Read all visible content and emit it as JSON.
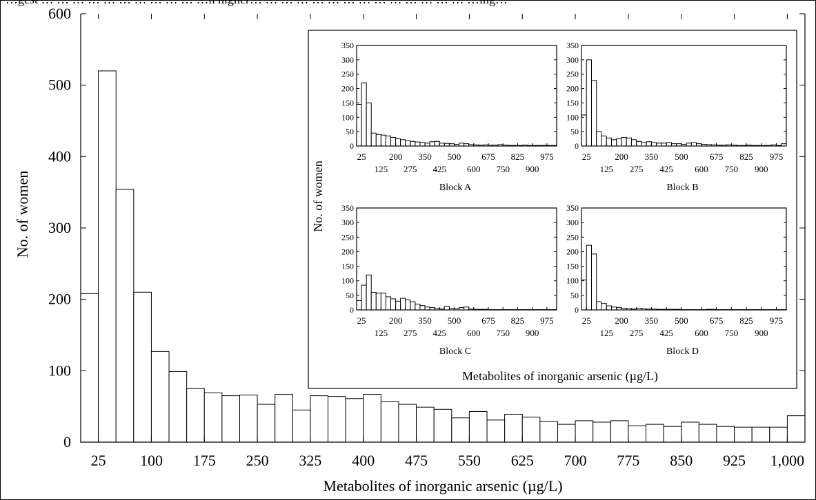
{
  "header_text": "…gest … … … … … … … … … … …n higher… … … … … … … … … … … … … … …ing…",
  "chart_data": [
    {
      "id": "main",
      "type": "bar",
      "xlabel": "Metabolites of inorganic arsenic (µg/L)",
      "ylabel": "No. of women",
      "yticks": [
        "0",
        "100",
        "200",
        "300",
        "400",
        "500",
        "600"
      ],
      "ytick_values": [
        0,
        100,
        200,
        300,
        400,
        500,
        600
      ],
      "xtick_labels": [
        "25",
        "100",
        "175",
        "250",
        "325",
        "400",
        "475",
        "550",
        "625",
        "700",
        "775",
        "850",
        "925",
        "1,000"
      ],
      "xtick_values": [
        25,
        100,
        175,
        250,
        325,
        400,
        475,
        550,
        625,
        700,
        775,
        850,
        925,
        1000
      ],
      "x_range": [
        0,
        1025
      ],
      "y_range": [
        0,
        600
      ],
      "bin_width": 25,
      "bin_starts": [
        0,
        25,
        50,
        75,
        100,
        125,
        150,
        175,
        200,
        225,
        250,
        275,
        300,
        325,
        350,
        375,
        400,
        425,
        450,
        475,
        500,
        525,
        550,
        575,
        600,
        625,
        650,
        675,
        700,
        725,
        750,
        775,
        800,
        825,
        850,
        875,
        900,
        925,
        950,
        975,
        1000
      ],
      "values": [
        208,
        520,
        354,
        210,
        127,
        99,
        75,
        69,
        65,
        66,
        53,
        67,
        45,
        65,
        64,
        61,
        67,
        57,
        53,
        49,
        46,
        34,
        43,
        31,
        39,
        35,
        29,
        25,
        30,
        28,
        30,
        23,
        25,
        22,
        28,
        25,
        22,
        21,
        21,
        21,
        37
      ]
    }
  ],
  "inset": {
    "xlabel": "Metabolites of inorganic arsenic (µg/L)",
    "ylabel": "No. of women",
    "yticks": [
      "0",
      "50",
      "100",
      "150",
      "200",
      "250",
      "300",
      "350"
    ],
    "ytick_values": [
      0,
      50,
      100,
      150,
      200,
      250,
      300,
      350
    ],
    "xtick_top": [
      "25",
      "200",
      "350",
      "500",
      "675",
      "825",
      "975"
    ],
    "xtick_top_values": [
      25,
      200,
      350,
      500,
      675,
      825,
      975
    ],
    "xtick_bottom": [
      "125",
      "275",
      "425",
      "600",
      "750",
      "900"
    ],
    "xtick_bottom_values": [
      125,
      275,
      425,
      600,
      750,
      900
    ],
    "x_range": [
      0,
      1025
    ],
    "y_range": [
      0,
      350
    ],
    "bin_width": 25,
    "panels": [
      {
        "name": "Block A",
        "values": [
          145,
          220,
          150,
          45,
          40,
          38,
          35,
          30,
          25,
          22,
          18,
          16,
          14,
          12,
          10,
          15,
          16,
          10,
          9,
          8,
          6,
          10,
          8,
          5,
          4,
          3,
          4,
          3,
          3,
          5,
          3,
          2,
          2,
          2,
          3,
          2,
          2,
          2,
          2,
          2,
          2
        ]
      },
      {
        "name": "Block B",
        "values": [
          108,
          300,
          228,
          50,
          35,
          28,
          22,
          25,
          30,
          28,
          22,
          16,
          12,
          15,
          12,
          10,
          10,
          12,
          8,
          8,
          6,
          10,
          12,
          8,
          6,
          5,
          4,
          3,
          3,
          4,
          3,
          2,
          2,
          3,
          2,
          2,
          2,
          2,
          4,
          2,
          8
        ]
      },
      {
        "name": "Block C",
        "values": [
          32,
          85,
          120,
          60,
          58,
          58,
          45,
          38,
          30,
          40,
          35,
          28,
          20,
          15,
          10,
          8,
          6,
          3,
          12,
          5,
          4,
          8,
          10,
          3,
          2,
          2,
          2,
          1,
          1,
          1,
          1,
          1,
          1,
          1,
          1,
          1,
          1,
          1,
          1,
          1,
          1
        ]
      },
      {
        "name": "Block D",
        "values": [
          103,
          222,
          192,
          28,
          22,
          14,
          10,
          8,
          6,
          5,
          3,
          6,
          4,
          3,
          3,
          2,
          2,
          2,
          2,
          2,
          1,
          1,
          1,
          1,
          1,
          2,
          2,
          1,
          1,
          1,
          1,
          1,
          1,
          1,
          1,
          1,
          1,
          1,
          1,
          1,
          1
        ]
      }
    ]
  }
}
